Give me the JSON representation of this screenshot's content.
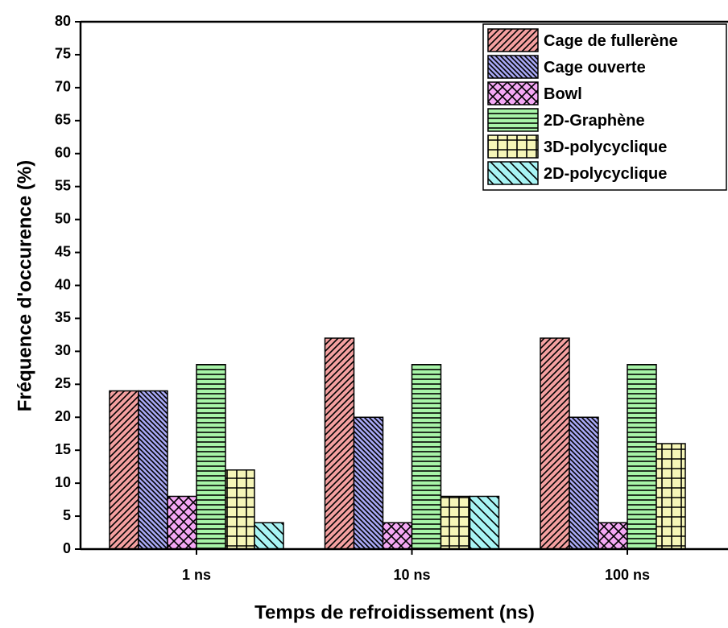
{
  "chart_data": {
    "type": "bar",
    "xlabel": "Temps de refroidissement (ns)",
    "ylabel": "Fréquence d'occurence (%)",
    "categories": [
      "1 ns",
      "10 ns",
      "100 ns"
    ],
    "series": [
      {
        "name": "Cage de fullerène",
        "color": "#f4a0a0",
        "values": [
          24,
          32,
          32
        ]
      },
      {
        "name": "Cage ouverte",
        "color": "#a8a8f4",
        "values": [
          24,
          20,
          20
        ]
      },
      {
        "name": "Bowl",
        "color": "#f4a8f4",
        "values": [
          8,
          4,
          4
        ]
      },
      {
        "name": "2D-Graphène",
        "color": "#a8f4a8",
        "values": [
          28,
          28,
          28
        ]
      },
      {
        "name": "3D-polycyclique",
        "color": "#f6f6b8",
        "values": [
          12,
          8,
          16
        ]
      },
      {
        "name": "2D-polycyclique",
        "color": "#a8f4f4",
        "values": [
          4,
          8,
          0
        ]
      }
    ],
    "ylim": [
      0,
      80
    ],
    "yticks": [
      0,
      5,
      10,
      15,
      20,
      25,
      30,
      35,
      40,
      45,
      50,
      55,
      60,
      65,
      70,
      75,
      80
    ],
    "legend": "upper right"
  }
}
